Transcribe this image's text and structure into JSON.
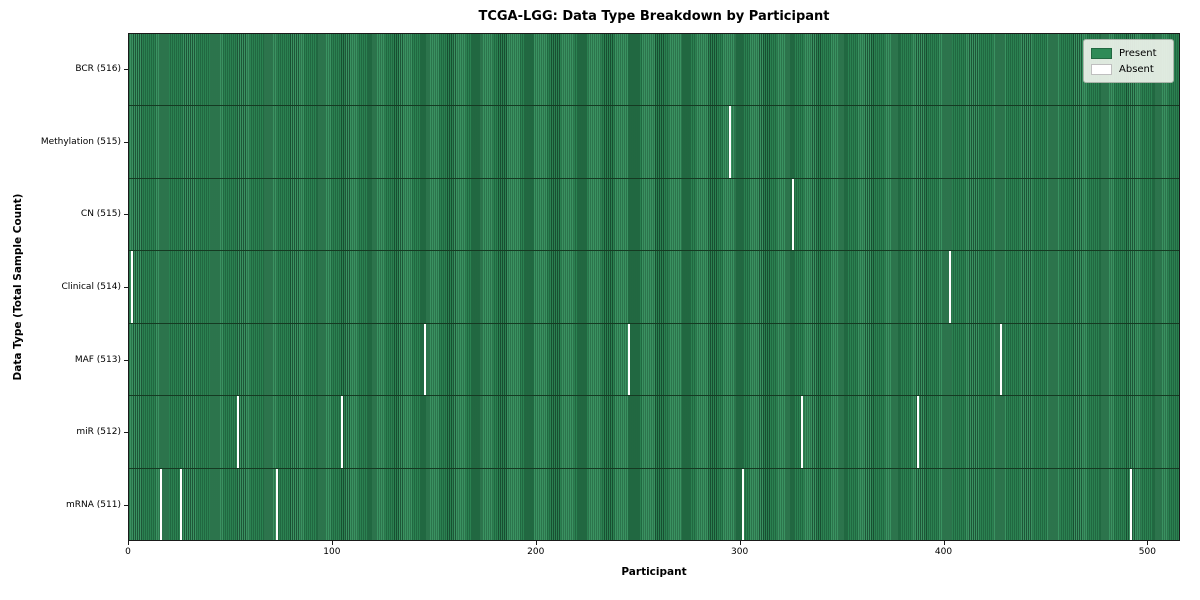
{
  "title": "TCGA-LGG: Data Type Breakdown by Participant",
  "colors": {
    "present": "#2e8b57",
    "present_edge": "#153a22",
    "absent": "#ffffff",
    "spine": "#1a1a1a",
    "legend_background": "#eef3ec"
  },
  "chart_data": {
    "type": "heatmap",
    "title": "TCGA-LGG: Data Type Breakdown by Participant",
    "xlabel": "Participant",
    "ylabel": "Data Type (Total Sample Count)",
    "x_range": [
      0,
      516
    ],
    "n_participants": 516,
    "x_ticks": [
      0,
      100,
      200,
      300,
      400,
      500
    ],
    "grid": false,
    "legend_position": "upper right",
    "legend": [
      {
        "label": "Present",
        "color": "#2e8b57"
      },
      {
        "label": "Absent",
        "color": "#ffffff"
      }
    ],
    "rows": [
      {
        "label": "BCR (516)",
        "data_type": "BCR",
        "present_count": 516,
        "absent_count": 0,
        "absent_participants": []
      },
      {
        "label": "Methylation (515)",
        "data_type": "Methylation",
        "present_count": 515,
        "absent_count": 1,
        "absent_participants": [
          295
        ]
      },
      {
        "label": "CN (515)",
        "data_type": "CN",
        "present_count": 515,
        "absent_count": 1,
        "absent_participants": [
          326
        ]
      },
      {
        "label": "Clinical (514)",
        "data_type": "Clinical",
        "present_count": 514,
        "absent_count": 2,
        "absent_participants": [
          1,
          403
        ]
      },
      {
        "label": "MAF (513)",
        "data_type": "MAF",
        "present_count": 513,
        "absent_count": 3,
        "absent_participants": [
          145,
          245,
          428
        ]
      },
      {
        "label": "miR (512)",
        "data_type": "miR",
        "present_count": 512,
        "absent_count": 4,
        "absent_participants": [
          53,
          104,
          330,
          387
        ]
      },
      {
        "label": "mRNA (511)",
        "data_type": "mRNA",
        "present_count": 511,
        "absent_count": 5,
        "absent_participants": [
          15,
          25,
          72,
          301,
          492
        ]
      }
    ]
  }
}
